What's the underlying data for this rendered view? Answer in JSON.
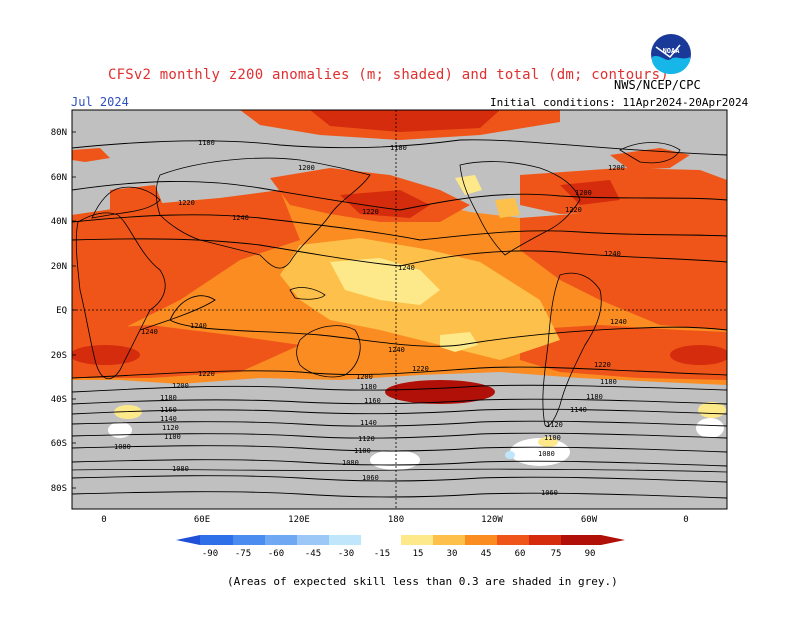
{
  "header": {
    "title": "CFSv2 monthly z200 anomalies (m; shaded) and total (dm; contours)",
    "month": "Jul 2024",
    "initial_conditions": "Initial conditions: 11Apr2024-20Apr2024",
    "agency": "NWS/NCEP/CPC",
    "logo_text": "NOAA"
  },
  "axes": {
    "lat_labels": [
      "80N",
      "60N",
      "40N",
      "20N",
      "EQ",
      "20S",
      "40S",
      "60S",
      "80S"
    ],
    "lon_labels": [
      "0",
      "60E",
      "120E",
      "180",
      "120W",
      "60W",
      "0"
    ]
  },
  "colorbar": {
    "ticks": [
      "-90",
      "-75",
      "-60",
      "-45",
      "-30",
      "-15",
      "15",
      "30",
      "45",
      "60",
      "75",
      "90"
    ],
    "colors": {
      "lt_-90": "#1f4fd8",
      "-90_-75": "#2f6fe8",
      "-75_-60": "#4a8cf0",
      "-60_-45": "#70a8f4",
      "-45_-30": "#9cc8f8",
      "-30_-15": "#bfe6fa",
      "-15_15": "#ffffff",
      "15_30": "#fde98a",
      "30_45": "#fdc04a",
      "45_60": "#fb8c22",
      "60_75": "#ef5518",
      "75_90": "#d42c0c",
      "gt_90": "#b01008"
    }
  },
  "contours": {
    "labels": [
      "1180",
      "1180",
      "1200",
      "1200",
      "1220",
      "1220",
      "1220",
      "1240",
      "1240",
      "1240",
      "1240",
      "1240",
      "1240",
      "1240",
      "1200",
      "1220",
      "1220",
      "1220",
      "1200",
      "1200",
      "1180",
      "1180",
      "1180",
      "1180",
      "1160",
      "1160",
      "1140",
      "1140",
      "1140",
      "1120",
      "1120",
      "1120",
      "1100",
      "1100",
      "1100",
      "1080",
      "1080",
      "1080",
      "1080",
      "1060",
      "1060"
    ]
  },
  "skill_grey": "#c0c0c0",
  "footnote": "(Areas of expected skill less than 0.3 are shaded in grey.)"
}
